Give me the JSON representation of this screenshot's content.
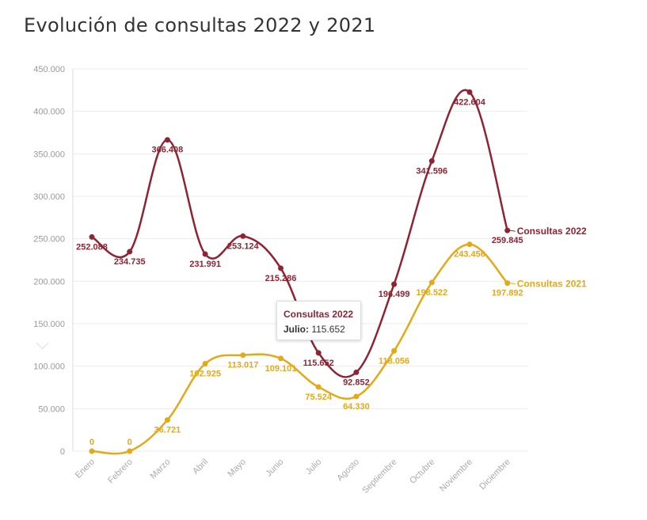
{
  "page": {
    "title": "Evolución de consultas 2022 y 2021"
  },
  "tooltip": {
    "series": "Consultas 2022",
    "month": "Julio:",
    "value": "115.652"
  },
  "chart_data": {
    "type": "line",
    "title": "Evolución de consultas 2022 y 2021",
    "xlabel": "",
    "ylabel": "",
    "ylim": [
      0,
      450000
    ],
    "yticks": [
      0,
      50000,
      100000,
      150000,
      200000,
      250000,
      300000,
      350000,
      400000,
      450000
    ],
    "ytick_labels": [
      "0",
      "50.000",
      "100.000",
      "150.000",
      "200.000",
      "250.000",
      "300.000",
      "350.000",
      "400.000",
      "450.000"
    ],
    "categories": [
      "Enero",
      "Febrero",
      "Marzo",
      "Abril",
      "Mayo",
      "Junio",
      "Julio",
      "Agosto",
      "Septiembre",
      "Octubre",
      "Noviembre",
      "Diciembre"
    ],
    "grid": true,
    "series": [
      {
        "name": "Consultas 2022",
        "color": "#8e2433",
        "values": [
          252088,
          234735,
          366408,
          231991,
          253124,
          215286,
          115652,
          92852,
          196499,
          341596,
          422604,
          259845
        ],
        "labels": [
          "252.088",
          "234.735",
          "366.408",
          "231.991",
          "253.124",
          "215.286",
          "115.652",
          "92.852",
          "196.499",
          "341.596",
          "422.604",
          "259.845"
        ]
      },
      {
        "name": "Consultas 2021",
        "color": "#e3a917",
        "values": [
          0,
          0,
          36721,
          102925,
          113017,
          109101,
          75524,
          64330,
          118056,
          198522,
          243456,
          197892
        ],
        "labels": [
          "0",
          "0",
          "36.721",
          "102.925",
          "113.017",
          "109.101",
          "75.524",
          "64.330",
          "118.056",
          "198.522",
          "243.456",
          "197.892"
        ]
      }
    ]
  }
}
